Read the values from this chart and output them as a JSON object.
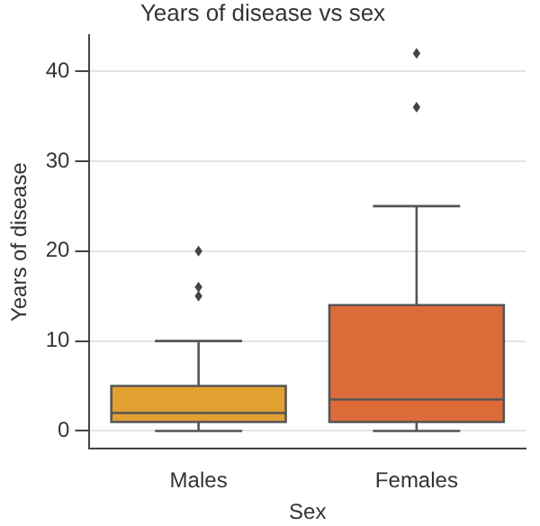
{
  "chart_data": {
    "type": "box",
    "title": "Years of disease vs sex",
    "xlabel": "Sex",
    "ylabel": "Years of disease",
    "categories": [
      "Males",
      "Females"
    ],
    "boxes": [
      {
        "low": 0,
        "q1": 1,
        "median": 2,
        "q3": 5,
        "high": 10,
        "outliers": [
          15,
          16,
          20
        ]
      },
      {
        "low": 0,
        "q1": 1,
        "median": 3.5,
        "q3": 14,
        "high": 25,
        "outliers": [
          36,
          42
        ]
      }
    ],
    "colors": [
      "#e1a032",
      "#dd6b3a"
    ],
    "ylim": [
      -2,
      44
    ],
    "yticks": [
      0,
      10,
      20,
      30,
      40
    ],
    "grid": "y",
    "marker": "diamond"
  }
}
